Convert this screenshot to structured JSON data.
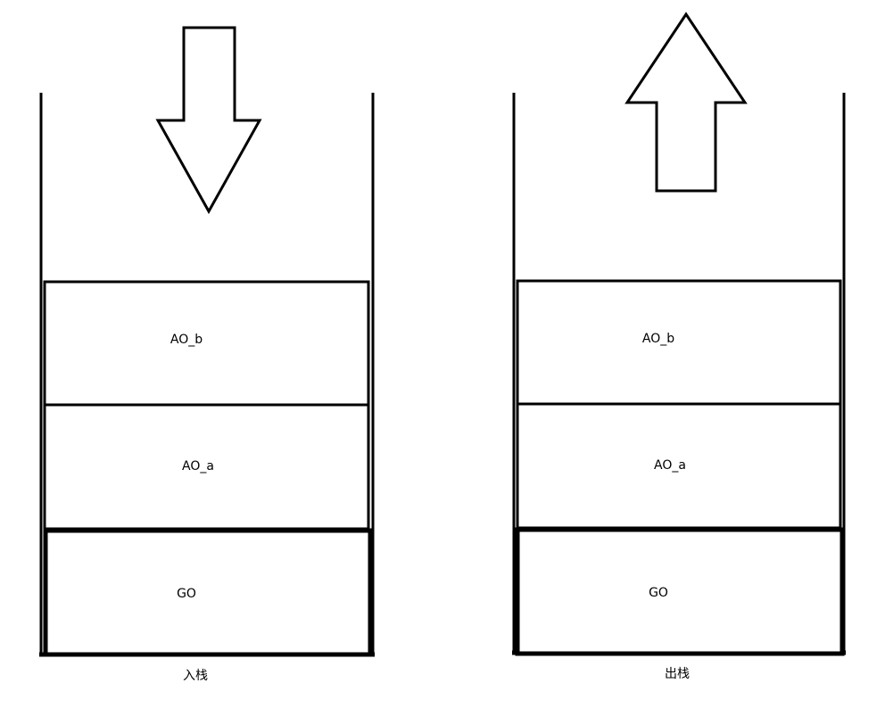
{
  "colors": {
    "line": "#000000",
    "background": "#ffffff"
  },
  "stacks": [
    {
      "arrow": "down-arrow",
      "frames": [
        "AO_b",
        "AO_a",
        "GO"
      ],
      "caption": "入栈"
    },
    {
      "arrow": "up-arrow",
      "frames": [
        "AO_b",
        "AO_a",
        "GO"
      ],
      "caption": "出栈"
    }
  ]
}
